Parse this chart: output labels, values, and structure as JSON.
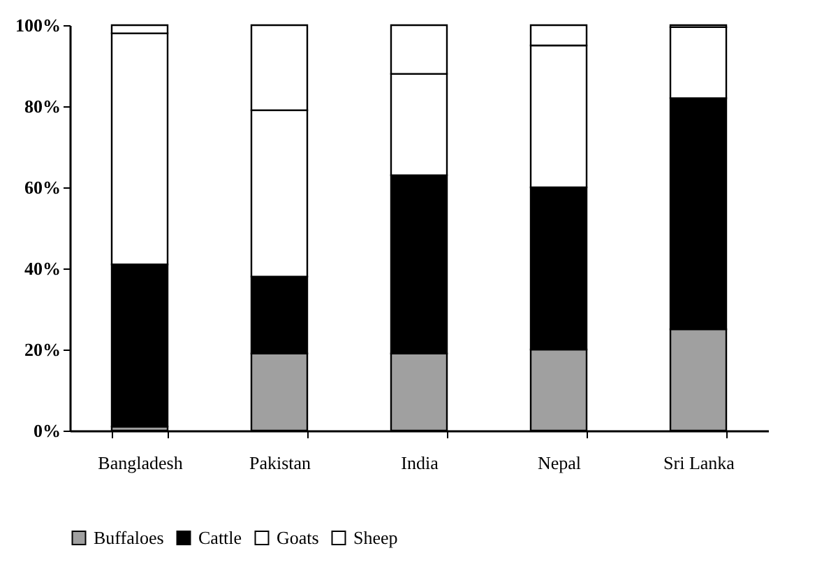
{
  "chart_data": {
    "type": "bar",
    "stacked": true,
    "categories": [
      "Bangladesh",
      "Pakistan",
      "India",
      "Nepal",
      "Sri Lanka"
    ],
    "series": [
      {
        "name": "Buffaloes",
        "color": "#a0a0a0",
        "values": [
          1,
          19,
          19,
          20,
          25
        ]
      },
      {
        "name": "Cattle",
        "color": "#000000",
        "values": [
          40,
          19,
          44,
          40,
          57
        ]
      },
      {
        "name": "Goats",
        "color": "#ffffff",
        "values": [
          57,
          41,
          25,
          35,
          17.5
        ]
      },
      {
        "name": "Sheep",
        "color": "#ffffff",
        "values": [
          2,
          21,
          12,
          5,
          0.5
        ]
      }
    ],
    "ylim": [
      0,
      100
    ],
    "yticks": [
      {
        "value": 0,
        "label": "0%"
      },
      {
        "value": 20,
        "label": "20%"
      },
      {
        "value": 40,
        "label": "40%"
      },
      {
        "value": 60,
        "label": "60%"
      },
      {
        "value": 80,
        "label": "80%"
      },
      {
        "value": 100,
        "label": "100%"
      }
    ],
    "grid": false,
    "legend": "bottom"
  }
}
